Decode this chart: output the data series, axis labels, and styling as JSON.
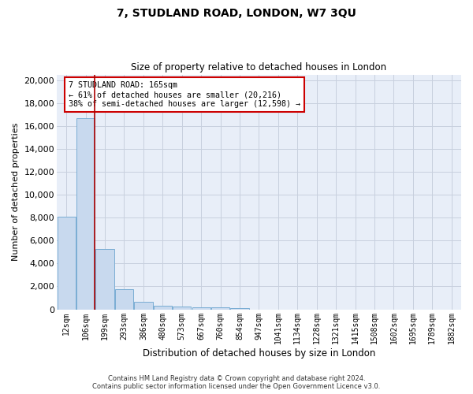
{
  "title_line1": "7, STUDLAND ROAD, LONDON, W7 3QU",
  "title_line2": "Size of property relative to detached houses in London",
  "xlabel": "Distribution of detached houses by size in London",
  "ylabel": "Number of detached properties",
  "categories": [
    "12sqm",
    "106sqm",
    "199sqm",
    "293sqm",
    "386sqm",
    "480sqm",
    "573sqm",
    "667sqm",
    "760sqm",
    "854sqm",
    "947sqm",
    "1041sqm",
    "1134sqm",
    "1228sqm",
    "1321sqm",
    "1415sqm",
    "1508sqm",
    "1602sqm",
    "1695sqm",
    "1789sqm",
    "1882sqm"
  ],
  "values": [
    8100,
    16700,
    5300,
    1750,
    680,
    330,
    250,
    175,
    150,
    125,
    0,
    0,
    0,
    0,
    0,
    0,
    0,
    0,
    0,
    0,
    0
  ],
  "bar_color": "#c8d9ee",
  "bar_edge_color": "#7aadd4",
  "marker_line_color": "#aa0000",
  "annotation_line1": "7 STUDLAND ROAD: 165sqm",
  "annotation_line2": "← 61% of detached houses are smaller (20,216)",
  "annotation_line3": "38% of semi-detached houses are larger (12,598) →",
  "annotation_box_color": "#ffffff",
  "annotation_box_edge": "#cc0000",
  "ylim": [
    0,
    20500
  ],
  "yticks": [
    0,
    2000,
    4000,
    6000,
    8000,
    10000,
    12000,
    14000,
    16000,
    18000,
    20000
  ],
  "grid_color": "#c8d0de",
  "background_color": "#e8eef8",
  "footer_line1": "Contains HM Land Registry data © Crown copyright and database right 2024.",
  "footer_line2": "Contains public sector information licensed under the Open Government Licence v3.0."
}
